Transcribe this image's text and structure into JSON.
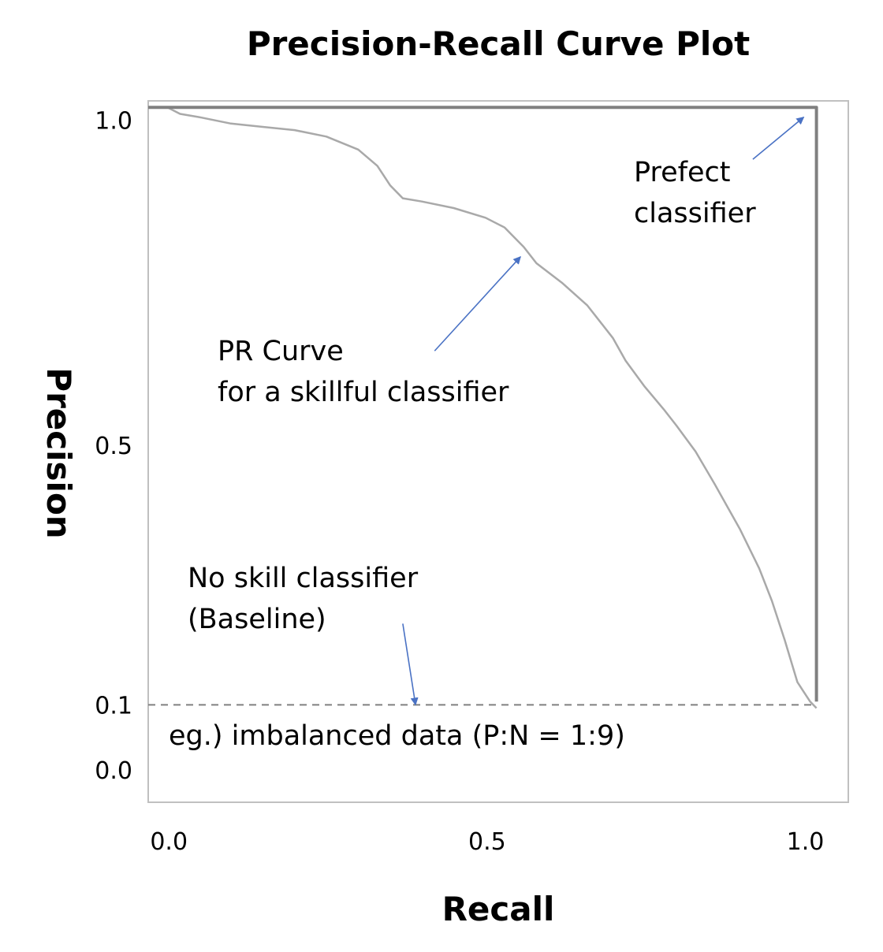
{
  "chart_data": {
    "type": "line",
    "title": "Precision-Recall Curve Plot",
    "xlabel": "Recall",
    "ylabel": "Precision",
    "xlim": [
      -0.03,
      1.07
    ],
    "ylim": [
      -0.05,
      1.03
    ],
    "x_ticks": [
      {
        "value": 0.0,
        "label": "0.0"
      },
      {
        "value": 0.5,
        "label": "0.5"
      },
      {
        "value": 1.0,
        "label": "1.0"
      }
    ],
    "y_ticks": [
      {
        "value": 1.0,
        "label": "1.0"
      },
      {
        "value": 0.5,
        "label": "0.5"
      },
      {
        "value": 0.1,
        "label": "0.1"
      },
      {
        "value": 0.0,
        "label": "0.0"
      }
    ],
    "series": [
      {
        "name": "PR Curve for a skillful classifier",
        "color": "#a9a9a9",
        "style": "solid",
        "x": [
          -0.03,
          0.0,
          0.02,
          0.05,
          0.1,
          0.15,
          0.2,
          0.25,
          0.3,
          0.33,
          0.35,
          0.37,
          0.4,
          0.45,
          0.5,
          0.53,
          0.56,
          0.58,
          0.62,
          0.66,
          0.7,
          0.72,
          0.75,
          0.78,
          0.8,
          0.83,
          0.86,
          0.88,
          0.9,
          0.93,
          0.95,
          0.97,
          0.99,
          1.0,
          1.01,
          1.02
        ],
        "y": [
          1.02,
          1.02,
          1.01,
          1.005,
          0.995,
          0.99,
          0.985,
          0.975,
          0.955,
          0.93,
          0.9,
          0.88,
          0.875,
          0.865,
          0.85,
          0.835,
          0.805,
          0.78,
          0.75,
          0.715,
          0.665,
          0.63,
          0.59,
          0.555,
          0.53,
          0.49,
          0.44,
          0.405,
          0.37,
          0.31,
          0.26,
          0.2,
          0.135,
          0.12,
          0.105,
          0.095
        ]
      },
      {
        "name": "Prefect classifier",
        "color": "#808080",
        "style": "solid",
        "x": [
          -0.03,
          1.02,
          1.02
        ],
        "y": [
          1.02,
          1.02,
          0.105
        ]
      },
      {
        "name": "No skill classifier (Baseline)",
        "color": "#808080",
        "style": "dashed",
        "x": [
          -0.03,
          1.02
        ],
        "y": [
          0.1,
          0.1
        ]
      }
    ],
    "annotations": [
      {
        "lines": [
          "Prefect",
          "classifier"
        ],
        "arrow_from": [
          0.92,
          0.94
        ],
        "arrow_to": [
          1.0,
          1.005
        ]
      },
      {
        "lines": [
          "PR Curve",
          "for a skillful classifier"
        ],
        "arrow_from": [
          0.42,
          0.645
        ],
        "arrow_to": [
          0.555,
          0.79
        ]
      },
      {
        "lines": [
          "No skill classifier",
          "(Baseline)"
        ],
        "arrow_from": [
          0.37,
          0.225
        ],
        "arrow_to": [
          0.39,
          0.1
        ]
      },
      {
        "lines": [
          "eg.) imbalanced data (P:N = 1:9)"
        ],
        "arrow_from": null,
        "arrow_to": null
      }
    ],
    "arrow_color": "#4a72c4",
    "frame_color": "#c0c0c0",
    "grid": false,
    "legend": "none"
  }
}
